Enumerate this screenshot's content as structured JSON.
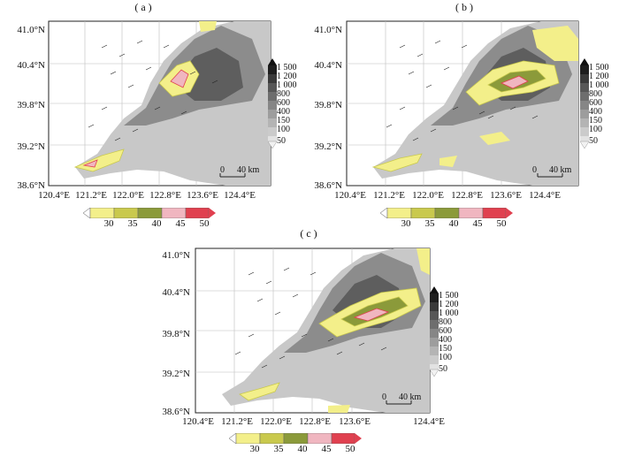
{
  "panels": [
    {
      "id": "a",
      "title": "( a )"
    },
    {
      "id": "b",
      "title": "( b )"
    },
    {
      "id": "c",
      "title": "( c )"
    }
  ],
  "lat_labels": [
    "41.0°N",
    "40.4°N",
    "39.8°N",
    "39.2°N",
    "38.6°N"
  ],
  "lon_labels": [
    "120.4°E",
    "121.2°E",
    "122.0°E",
    "122.8°E",
    "123.6°E",
    "124.4°E"
  ],
  "terrain_levels": [
    "1 500",
    "1 200",
    "1 000",
    "800",
    "600",
    "400",
    "150",
    "100",
    "50"
  ],
  "terrain_colors": [
    "#1e1e1e",
    "#3a3a3a",
    "#575757",
    "#6e6e6e",
    "#868686",
    "#9d9d9d",
    "#b4b4b4",
    "#cbcbcb",
    "#e2e2e2"
  ],
  "reflectivity_levels": [
    "30",
    "35",
    "40",
    "45",
    "50"
  ],
  "reflectivity_colors": [
    "#f3ef8a",
    "#c9c94d",
    "#8b9a3a",
    "#f0b6c0",
    "#e0404f"
  ],
  "scale_bar": {
    "zero": "0",
    "length": "40 km"
  }
}
